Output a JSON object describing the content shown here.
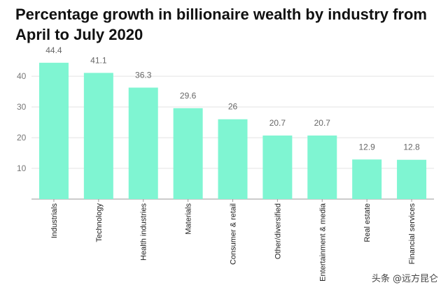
{
  "chart_data": {
    "type": "bar",
    "title": "Percentage growth in billionaire wealth by industry from April to July 2020",
    "categories": [
      "Industrials",
      "Technology",
      "Health industries",
      "Materials",
      "Consumer & retail",
      "Other/diversified",
      "Entertainment & media",
      "Real estate",
      "Financial services"
    ],
    "values": [
      44.4,
      41.1,
      36.3,
      29.6,
      26,
      20.7,
      20.7,
      12.9,
      12.8
    ],
    "value_labels": [
      "44.4",
      "41.1",
      "36.3",
      "29.6",
      "26",
      "20.7",
      "20.7",
      "12.9",
      "12.8"
    ],
    "yticks": [
      10,
      20,
      30,
      40
    ],
    "ylim": [
      0,
      48
    ],
    "grid": true,
    "xlabel": "",
    "ylabel": "",
    "bar_color": "#7ff5d2"
  },
  "watermark": "头条 @远方昆仑"
}
